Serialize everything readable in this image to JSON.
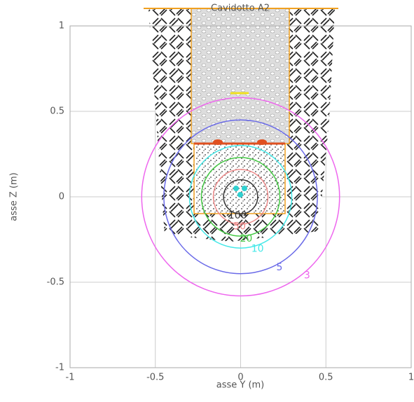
{
  "chart_data": {
    "type": "contour",
    "title": "Cavidotto A2",
    "x_label": "asse Y (m)",
    "y_label": "asse Z (m)",
    "xlim": [
      -1,
      1
    ],
    "ylim": [
      -1,
      1
    ],
    "xticks": [
      -1,
      -0.5,
      0,
      0.5,
      1
    ],
    "yticks": [
      -1,
      -0.5,
      0,
      0.5,
      1
    ],
    "grid": true,
    "contours": [
      {
        "level": 3,
        "radius": 0.58,
        "color": "#ee66ee"
      },
      {
        "level": 5,
        "radius": 0.45,
        "color": "#6a6ae8"
      },
      {
        "level": 10,
        "radius": 0.3,
        "color": "#44e8e8"
      },
      {
        "level": 20,
        "radius": 0.23,
        "color": "#44c844"
      },
      {
        "level": 50,
        "radius": 0.16,
        "color": "#ee8888"
      },
      {
        "level": 100,
        "radius": 0.1,
        "color": "#333333"
      }
    ]
  }
}
